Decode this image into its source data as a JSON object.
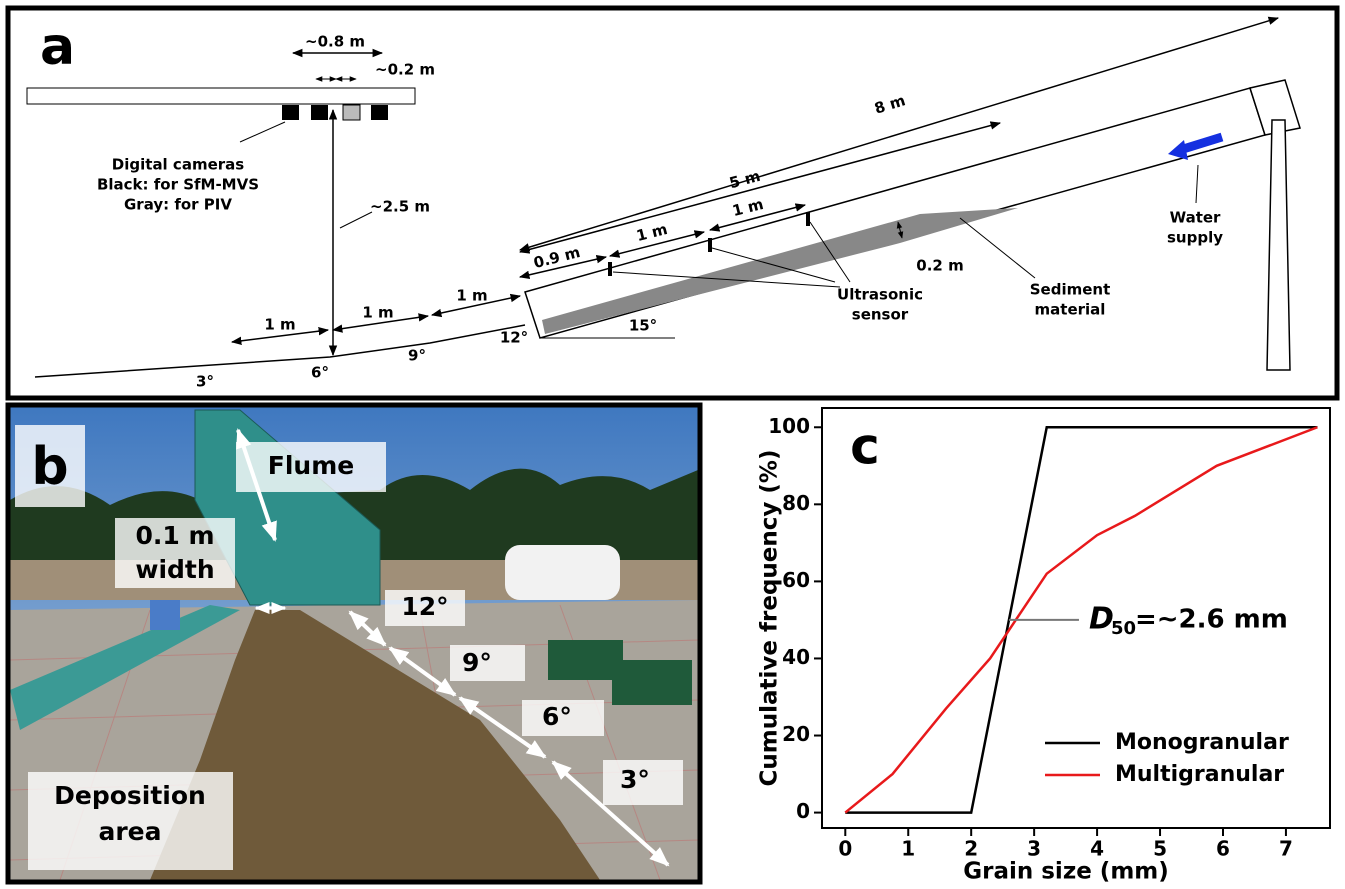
{
  "panel_a": {
    "label": "a",
    "camera_spacing": "~0.8 m",
    "camera_gap": "~0.2 m",
    "cameras": [
      "Digital cameras",
      "Black: for SfM-MVS",
      "Gray: for PIV"
    ],
    "height": "~2.5 m",
    "flume_length": "8 m",
    "upper_length": "5 m",
    "sensor_spacings": [
      "0.9 m",
      "1 m",
      "1 m"
    ],
    "ground_segments": [
      "1 m",
      "1 m",
      "1 m"
    ],
    "angles": [
      "3°",
      "6°",
      "9°",
      "12°",
      "15°"
    ],
    "sediment_depth": "0.2 m",
    "sensor": [
      "Ultrasonic",
      "sensor"
    ],
    "sediment": [
      "Sediment",
      "material"
    ],
    "water": [
      "Water",
      "supply"
    ]
  },
  "panel_b": {
    "label": "b",
    "flume": "Flume",
    "width": [
      "0.1 m",
      "width"
    ],
    "angles": [
      "12°",
      "9°",
      "6°",
      "3°"
    ],
    "deposition": [
      "Deposition",
      "area"
    ]
  },
  "chart_data": {
    "type": "line",
    "label": "c",
    "x_label": "Grain size (mm)",
    "y_label": "Cumulative frequency (%)",
    "xlim": [
      -0.37,
      7.7
    ],
    "ylim": [
      -4,
      105
    ],
    "xticks": [
      0,
      1,
      2,
      3,
      4,
      5,
      6,
      7
    ],
    "yticks": [
      0,
      20,
      40,
      60,
      80,
      100
    ],
    "legend": "lower right",
    "series": [
      {
        "name": "Monogranular",
        "color": "#000000",
        "x": [
          0,
          2,
          3.2,
          7.5
        ],
        "values": [
          0,
          0,
          100,
          100
        ]
      },
      {
        "name": "Multigranular",
        "color": "#e8191b",
        "x": [
          0,
          0.75,
          1.6,
          2.3,
          3.2,
          4,
          4.6,
          5.9,
          7.5
        ],
        "values": [
          0,
          10,
          27,
          40,
          62,
          72,
          77,
          90,
          100
        ]
      }
    ],
    "annotation": {
      "symbol": "D",
      "subscript": "50",
      "text": "=~2.6 mm",
      "x": 2.6,
      "y": 50
    }
  }
}
